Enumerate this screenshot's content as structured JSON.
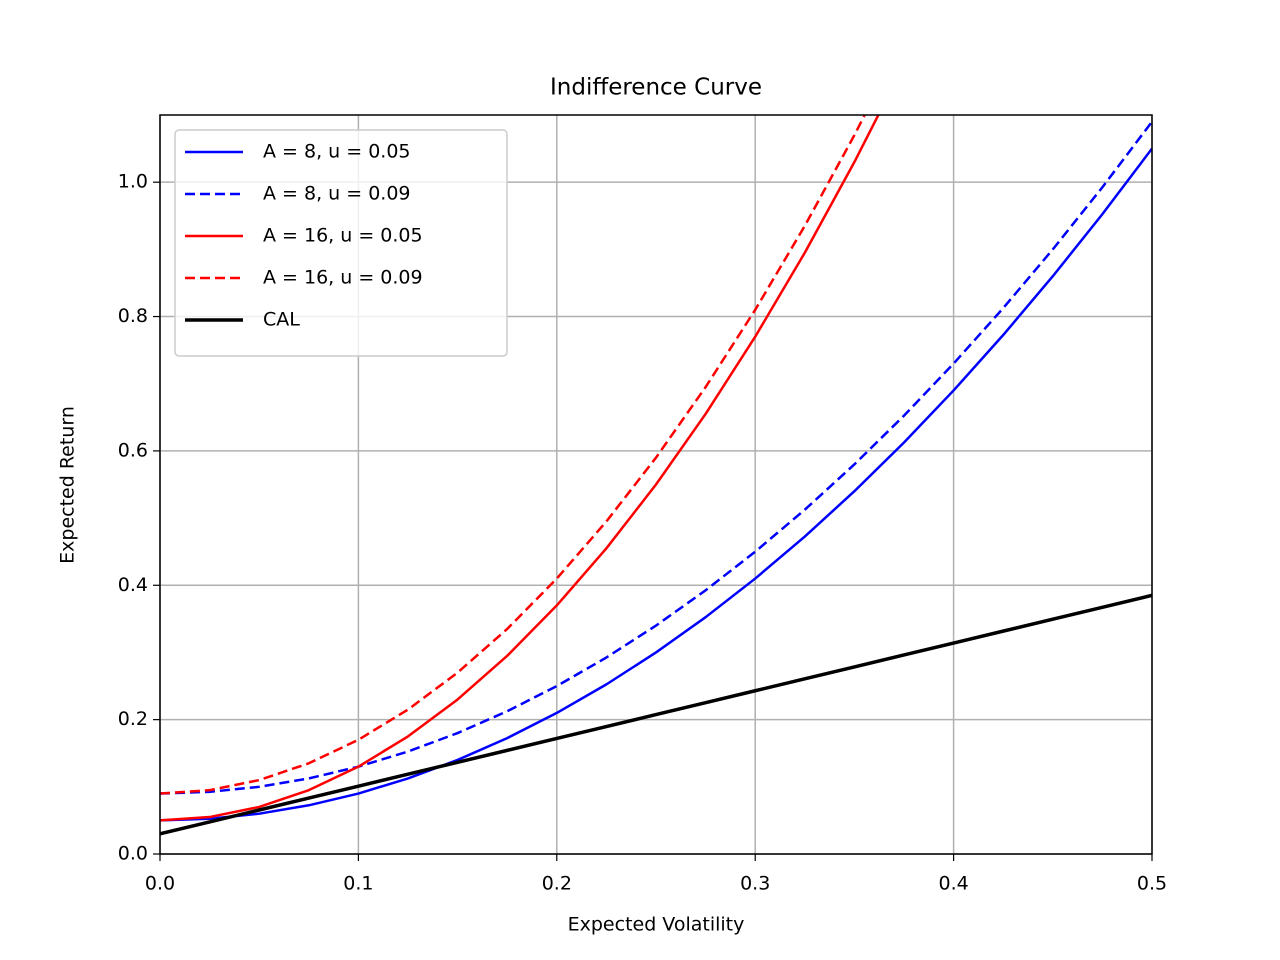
{
  "chart_data": {
    "type": "line",
    "title": "Indifference Curve",
    "x_label": "Expected Volatility",
    "y_label": "Expected Return",
    "x": [
      0,
      0.025,
      0.05,
      0.075,
      0.1,
      0.125,
      0.15,
      0.175,
      0.2,
      0.225,
      0.25,
      0.275,
      0.3,
      0.325,
      0.35,
      0.375,
      0.4,
      0.425,
      0.45,
      0.475,
      0.5
    ],
    "series": [
      {
        "name": "A = 8, u = 0.05",
        "color": "#0000ff",
        "dash": false,
        "values": [
          0.05,
          0.0525,
          0.06,
          0.0725,
          0.09,
          0.1125,
          0.14,
          0.1725,
          0.21,
          0.2525,
          0.3,
          0.3525,
          0.41,
          0.4725,
          0.54,
          0.6125,
          0.69,
          0.7725,
          0.86,
          0.9525,
          1.05
        ]
      },
      {
        "name": "A = 8, u = 0.09",
        "color": "#0000ff",
        "dash": true,
        "values": [
          0.09,
          0.0925,
          0.1,
          0.1125,
          0.13,
          0.1525,
          0.18,
          0.2125,
          0.25,
          0.2925,
          0.34,
          0.3925,
          0.45,
          0.5125,
          0.58,
          0.6525,
          0.73,
          0.8125,
          0.9,
          0.9925,
          1.09
        ]
      },
      {
        "name": "A = 16, u = 0.05",
        "color": "#ff0000",
        "dash": false,
        "values": [
          0.05,
          0.055,
          0.07,
          0.095,
          0.13,
          0.175,
          0.23,
          0.295,
          0.37,
          0.455,
          0.55,
          0.655,
          0.77,
          0.895,
          1.03,
          1.175,
          null,
          null,
          null,
          null,
          null
        ]
      },
      {
        "name": "A = 16, u = 0.09",
        "color": "#ff0000",
        "dash": true,
        "values": [
          0.09,
          0.095,
          0.11,
          0.135,
          0.17,
          0.215,
          0.27,
          0.335,
          0.41,
          0.495,
          0.59,
          0.695,
          0.81,
          0.935,
          1.07,
          1.215,
          null,
          null,
          null,
          null,
          null
        ]
      },
      {
        "name": "CAL",
        "color": "#000000",
        "dash": false,
        "width": 3.5,
        "values": [
          0.03,
          0.04775,
          0.0655,
          0.08325,
          0.101,
          0.11875,
          0.1365,
          0.15425,
          0.172,
          0.18975,
          0.2075,
          0.22525,
          0.243,
          0.26075,
          0.2785,
          0.29625,
          0.314,
          0.33175,
          0.3495,
          0.36725,
          0.385
        ]
      }
    ],
    "xlim": [
      0,
      0.5
    ],
    "ylim": [
      0,
      1.1
    ],
    "xticks": [
      {
        "value": 0,
        "label": "0.0"
      },
      0.1,
      0.2,
      0.3,
      0.4,
      0.5
    ],
    "yticks": [
      {
        "value": 0,
        "label": "0.0"
      },
      0.2,
      0.4,
      0.6,
      0.8,
      {
        "value": 1,
        "label": "1.0"
      }
    ],
    "grid": true,
    "legend": "upper left"
  }
}
